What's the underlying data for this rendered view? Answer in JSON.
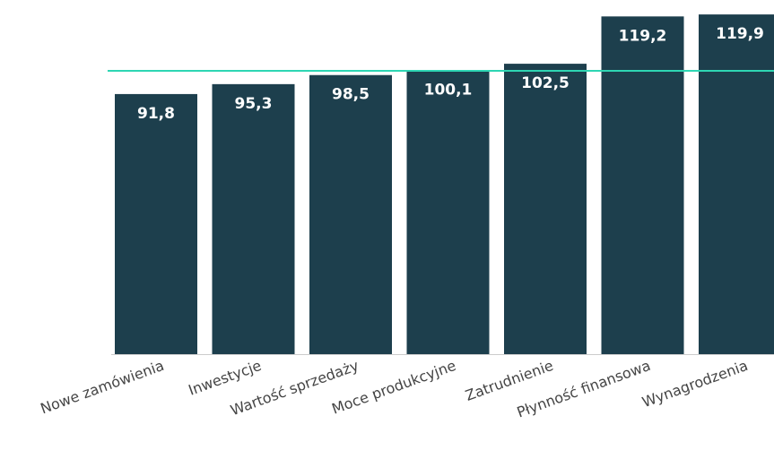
{
  "colors": {
    "bar": "#1d3f4d",
    "reference_line": "#2ed6b3",
    "value_label": "#ffffff",
    "tick_label": "#444444"
  },
  "chart_data": {
    "type": "bar",
    "categories": [
      "Nowe zamówienia",
      "Inwestycje",
      "Wartość sprzedaży",
      "Moce produkcyjne",
      "Zatrudnienie",
      "Płynność finansowa",
      "Wynagrodzenia"
    ],
    "values": [
      91.8,
      95.3,
      98.5,
      100.1,
      102.5,
      119.2,
      119.9
    ],
    "value_labels": [
      "91,8",
      "95,3",
      "98,5",
      "100,1",
      "102,5",
      "119,2",
      "119,9"
    ],
    "reference_line": 100,
    "ylim": [
      0,
      120
    ],
    "grid": false,
    "legend": "none",
    "xlabel": "",
    "ylabel": ""
  }
}
